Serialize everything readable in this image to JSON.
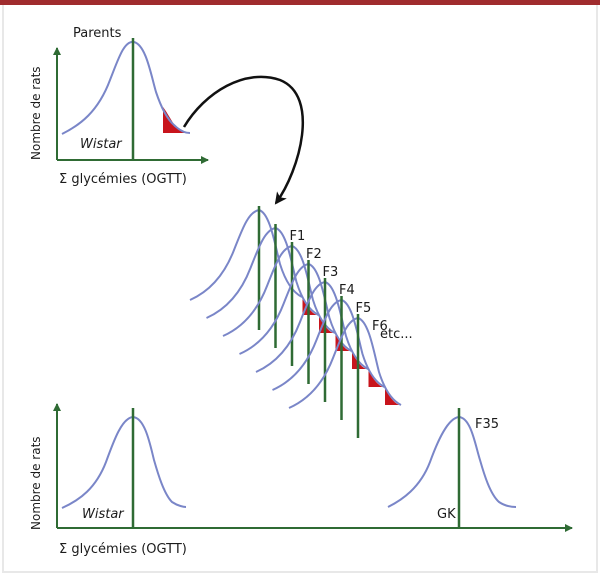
{
  "top_panel": {
    "curve_label": "Parents",
    "population_label": "Wistar",
    "y_axis_label": "Nombre de rats",
    "x_axis_label": "Σ glycémies (OGTT)"
  },
  "generations": {
    "labels": [
      "F1",
      "F2",
      "F3",
      "F4",
      "F5",
      "F6"
    ],
    "continuation_label": "etc..."
  },
  "bottom_panel": {
    "left_population_label": "Wistar",
    "right_population_label": "GK",
    "right_generation_label": "F35",
    "y_axis_label": "Nombre de rats",
    "x_axis_label": "Σ glycémies (OGTT)"
  },
  "colors": {
    "header_bar": "#a02c2e",
    "frame_border": "#e8e8e8",
    "axis": "#2f6b34",
    "curve": "#7a86c8",
    "selected_tail": "#c8141c",
    "arrow": "#111111"
  }
}
